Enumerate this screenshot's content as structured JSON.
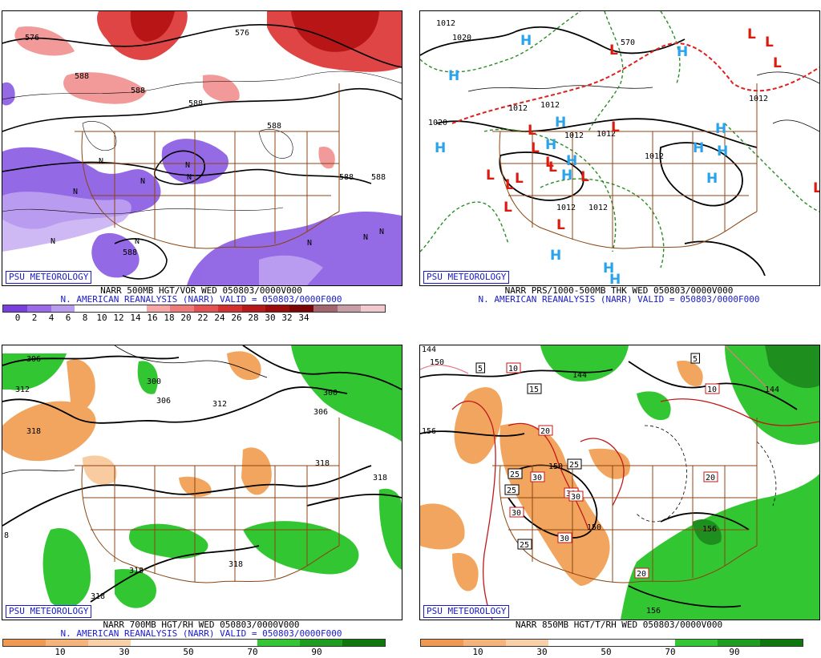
{
  "panels": [
    {
      "brand": "PSU METEOROLOGY",
      "line1": "NARR 500MB HGT/VOR WED 050803/0000V000",
      "line2": "N. AMERICAN REANALYSIS (NARR) VALID = 050803/0000F000",
      "colorbar": {
        "colors": [
          "#7b3fe0",
          "#9a6ae8",
          "#b99cf0",
          "#ffffff",
          "#ffffff",
          "#ffffff",
          "#f7a7a7",
          "#ef7a7a",
          "#e55050",
          "#d43030",
          "#b81818",
          "#9c0a0a",
          "#7c0404",
          "#a3656e",
          "#c79ea6",
          "#f1c8ce"
        ],
        "labels": [
          "0",
          "2",
          "4",
          "6",
          "8",
          "10",
          "12",
          "14",
          "16",
          "18",
          "20",
          "22",
          "24",
          "26",
          "28",
          "30",
          "32",
          "34"
        ]
      },
      "contour_labels": [
        "576",
        "576",
        "588",
        "588",
        "588",
        "588",
        "588",
        "588",
        "588"
      ],
      "markers": [
        "N",
        "N",
        "N",
        "N",
        "N",
        "N",
        "N",
        "N",
        "N",
        "N"
      ]
    },
    {
      "brand": "PSU METEOROLOGY",
      "line1": "NARR PRS/1000-500MB THK WED 050803/0000V000",
      "line2": "N. AMERICAN REANALYSIS (NARR) VALID = 050803/0000F000",
      "contour_labels": [
        "1012",
        "1020",
        "1020",
        "1012",
        "1012",
        "1012",
        "1012",
        "1012",
        "1012",
        "1012",
        "1012",
        "570"
      ],
      "high_marker": "H",
      "low_marker": "L"
    },
    {
      "brand": "PSU METEOROLOGY",
      "line1": "NARR 700MB HGT/RH WED 050803/0000V000",
      "line2": "N. AMERICAN REANALYSIS (NARR) VALID = 050803/0000F000",
      "colorbar": {
        "colors": [
          "#ef9a50",
          "#f4b47c",
          "#f8d0aa",
          "#ffffff",
          "#ffffff",
          "#ffffff",
          "#34c634",
          "#1e9e1e",
          "#0e780e"
        ],
        "labels": [
          "10",
          "30",
          "50",
          "70",
          "90"
        ]
      },
      "contour_labels": [
        "306",
        "312",
        "318",
        "300",
        "306",
        "312",
        "300",
        "306",
        "318",
        "318",
        "8",
        "318",
        "318",
        "318"
      ]
    },
    {
      "brand": "PSU METEOROLOGY",
      "line1": "NARR 850MB HGT/T/RH WED 050803/0000V000",
      "colorbar": {
        "colors": [
          "#ef9a50",
          "#f4b47c",
          "#f8d0aa",
          "#ffffff",
          "#ffffff",
          "#ffffff",
          "#34c634",
          "#1e9e1e",
          "#0e780e"
        ],
        "labels": [
          "10",
          "30",
          "50",
          "70",
          "90"
        ]
      },
      "contour_labels": [
        "144",
        "150",
        "156",
        "144",
        "150",
        "150",
        "156",
        "156",
        "144"
      ],
      "temp_labels": [
        "5",
        "10",
        "15",
        "20",
        "25",
        "30",
        "25",
        "25",
        "30",
        "30",
        "30",
        "30",
        "20",
        "20",
        "10",
        "5",
        "25"
      ]
    }
  ],
  "colors": {
    "brand_blue": "#1a1ac8",
    "high_blue": "#29a3ec",
    "low_red": "#dd1a10",
    "borders": "#8b4513",
    "temp_contour": "#c01818"
  }
}
